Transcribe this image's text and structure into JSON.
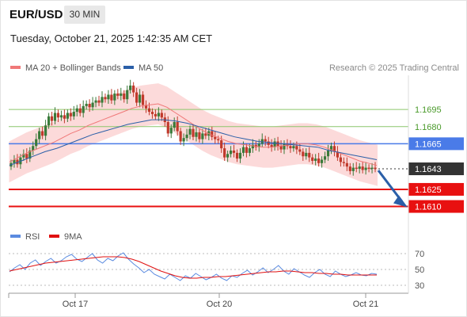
{
  "header": {
    "pair": "EUR/USD",
    "timeframe": "30 MIN",
    "datetime": "Tuesday, October 21, 2025 1:42:35 AM CET"
  },
  "legend": {
    "ma20": "MA 20 + Bollinger Bands",
    "ma50": "MA 50",
    "credit": "Research © 2025 Trading Central"
  },
  "rsi_legend": {
    "rsi": "RSI",
    "ma9": "9MA"
  },
  "colors": {
    "ma20": "#f07878",
    "ma50": "#2b5fa8",
    "bollinger_fill": "#fbd3d3",
    "candle_up": "#3a7a3a",
    "candle_down": "#c0392b",
    "green_level": "#8cc66b",
    "blue_level": "#4a7be8",
    "red_level": "#e81010",
    "current_badge": "#333333",
    "rsi": "#5b8be0",
    "rsi_ma": "#e01010",
    "arrow": "#2b5fa8"
  },
  "chart_data": {
    "type": "candlestick",
    "y_range": [
      1.1593,
      1.1725
    ],
    "levels": [
      {
        "value": 1.1695,
        "label": "1.1695",
        "style": "green"
      },
      {
        "value": 1.168,
        "label": "1.1680",
        "style": "green"
      },
      {
        "value": 1.1665,
        "label": "1.1665",
        "style": "blue"
      },
      {
        "value": 1.1643,
        "label": "1.1643",
        "style": "current"
      },
      {
        "value": 1.1625,
        "label": "1.1625",
        "style": "red"
      },
      {
        "value": 1.161,
        "label": "1.1610",
        "style": "red"
      }
    ],
    "forecast_arrow": {
      "from": 1.1643,
      "to": 1.161
    },
    "x_labels": [
      "Oct 17",
      "Oct 20",
      "Oct 21"
    ],
    "closes": [
      1.1648,
      1.1651,
      1.1647,
      1.1653,
      1.1656,
      1.1652,
      1.1659,
      1.1663,
      1.1669,
      1.1676,
      1.1672,
      1.1681,
      1.1689,
      1.1685,
      1.1692,
      1.1688,
      1.169,
      1.1687,
      1.1692,
      1.1689,
      1.1693,
      1.1696,
      1.1692,
      1.1698,
      1.17,
      1.1697,
      1.1701,
      1.1703,
      1.1701,
      1.1706,
      1.1704,
      1.1708,
      1.1703,
      1.1709,
      1.1707,
      1.1709,
      1.1704,
      1.1712,
      1.1716,
      1.171,
      1.1701,
      1.1708,
      1.1699,
      1.1696,
      1.1693,
      1.1691,
      1.1689,
      1.1692,
      1.1688,
      1.1684,
      1.1674,
      1.1679,
      1.1684,
      1.1676,
      1.1667,
      1.167,
      1.1673,
      1.1678,
      1.1671,
      1.1675,
      1.1669,
      1.1674,
      1.1672,
      1.1676,
      1.1671,
      1.1669,
      1.1668,
      1.1661,
      1.1653,
      1.1656,
      1.1659,
      1.1657,
      1.1652,
      1.1657,
      1.1662,
      1.1657,
      1.1661,
      1.1664,
      1.1662,
      1.1665,
      1.1669,
      1.1667,
      1.1664,
      1.1662,
      1.1667,
      1.1663,
      1.166,
      1.1665,
      1.1663,
      1.1661,
      1.1663,
      1.166,
      1.1658,
      1.1654,
      1.1657,
      1.1653,
      1.165,
      1.1652,
      1.1648,
      1.1651,
      1.1654,
      1.1659,
      1.1663,
      1.1658,
      1.1653,
      1.1649,
      1.1648,
      1.1645,
      1.1641,
      1.1644,
      1.1643,
      1.1645,
      1.1642,
      1.1644,
      1.1643,
      1.1644,
      1.1643
    ],
    "ma20": [
      1.1649,
      1.1653,
      1.1657,
      1.166,
      1.1663,
      1.1666,
      1.167,
      1.1674,
      1.1677,
      1.1681,
      1.1684,
      1.1687,
      1.169,
      1.1693,
      1.1696,
      1.1698,
      1.1699,
      1.17,
      1.1697,
      1.1692,
      1.1687,
      1.1682,
      1.1677,
      1.1673,
      1.167,
      1.1667,
      1.1665,
      1.1664,
      1.1663,
      1.1662,
      1.1662,
      1.1663,
      1.1664,
      1.1665,
      1.1665,
      1.1664,
      1.1662,
      1.1659,
      1.1656,
      1.1653,
      1.165,
      1.1648,
      1.1646
    ],
    "ma50": [
      1.1646,
      1.165,
      1.1654,
      1.1658,
      1.1661,
      1.1665,
      1.1669,
      1.1673,
      1.1676,
      1.1679,
      1.1682,
      1.1684,
      1.1686,
      1.1686,
      1.1685,
      1.1683,
      1.168,
      1.1677,
      1.1674,
      1.1671,
      1.1669,
      1.1667,
      1.1666,
      1.1665,
      1.1664,
      1.1663,
      1.1662,
      1.1659,
      1.1657,
      1.1655,
      1.1653,
      1.1651
    ],
    "bollinger_width": 0.0018,
    "rsi": {
      "y_range": [
        25,
        75
      ],
      "ticks": [
        70,
        50,
        30
      ],
      "values": [
        47,
        52,
        56,
        50,
        58,
        62,
        55,
        60,
        64,
        58,
        61,
        66,
        69,
        63,
        60,
        65,
        70,
        62,
        58,
        64,
        61,
        67,
        71,
        63,
        57,
        52,
        46,
        50,
        44,
        41,
        38,
        44,
        40,
        36,
        42,
        39,
        45,
        41,
        37,
        40,
        44,
        39,
        36,
        42,
        40,
        45,
        49,
        43,
        47,
        52,
        46,
        50,
        55,
        48,
        44,
        51,
        47,
        43,
        40,
        46,
        50,
        44,
        41,
        48,
        44,
        41,
        43,
        46,
        43,
        42,
        45,
        44
      ],
      "ma9": [
        48,
        50,
        52,
        54,
        56,
        58,
        59,
        60,
        61,
        62,
        63,
        64,
        65,
        66,
        66,
        66,
        65,
        63,
        60,
        56,
        52,
        48,
        45,
        42,
        40,
        39,
        39,
        40,
        40,
        41,
        41,
        42,
        43,
        44,
        45,
        46,
        47,
        47,
        48,
        48,
        47,
        46,
        46,
        45,
        45,
        44,
        44,
        43,
        43,
        43,
        43,
        43
      ]
    }
  }
}
